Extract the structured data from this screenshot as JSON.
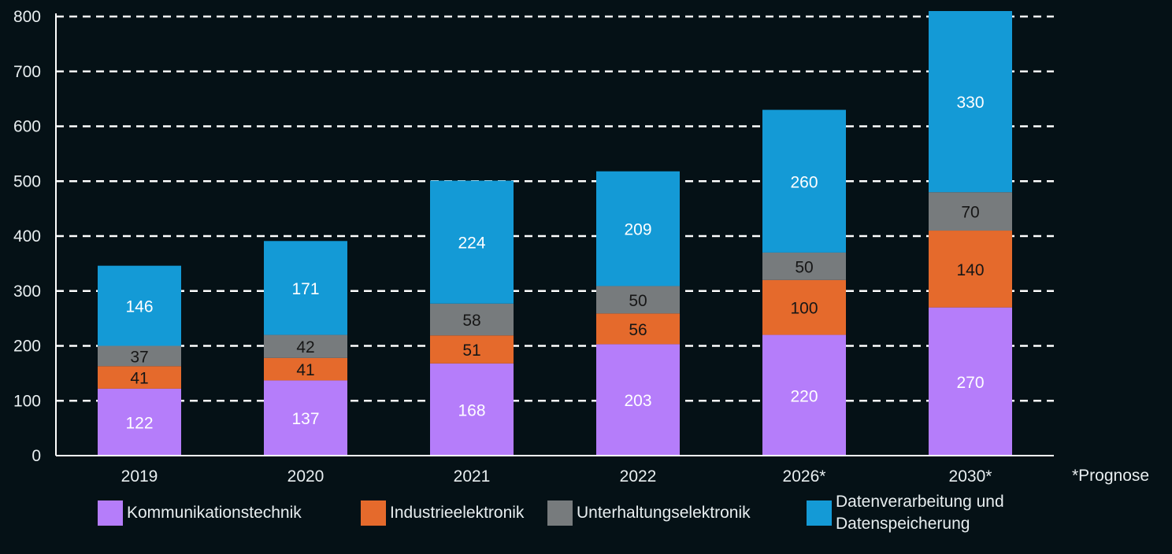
{
  "chart_data": {
    "type": "bar",
    "stacked": true,
    "categories": [
      "2019",
      "2020",
      "2021",
      "2022",
      "2026*",
      "2030*"
    ],
    "series": [
      {
        "name": "Kommunikationstechnik",
        "color": "#b57dfa",
        "label_color": "#ffffff",
        "values": [
          122,
          137,
          168,
          203,
          220,
          270
        ]
      },
      {
        "name": "Industrieelektronik",
        "color": "#e56a2c",
        "label_color": "#161616",
        "values": [
          41,
          41,
          51,
          56,
          100,
          140
        ]
      },
      {
        "name": "Unterhaltungselektronik",
        "color": "#777b7d",
        "label_color": "#161616",
        "values": [
          37,
          42,
          58,
          50,
          50,
          70
        ]
      },
      {
        "name": "Datenverarbeitung und\nDatenspeicherung",
        "color": "#149ad6",
        "label_color": "#ffffff",
        "values": [
          146,
          171,
          224,
          209,
          260,
          330
        ]
      }
    ],
    "ylim": [
      0,
      800
    ],
    "yticks": [
      0,
      100,
      200,
      300,
      400,
      500,
      600,
      700,
      800
    ],
    "grid": true,
    "legend_position": "bottom",
    "note": "*Prognose"
  }
}
